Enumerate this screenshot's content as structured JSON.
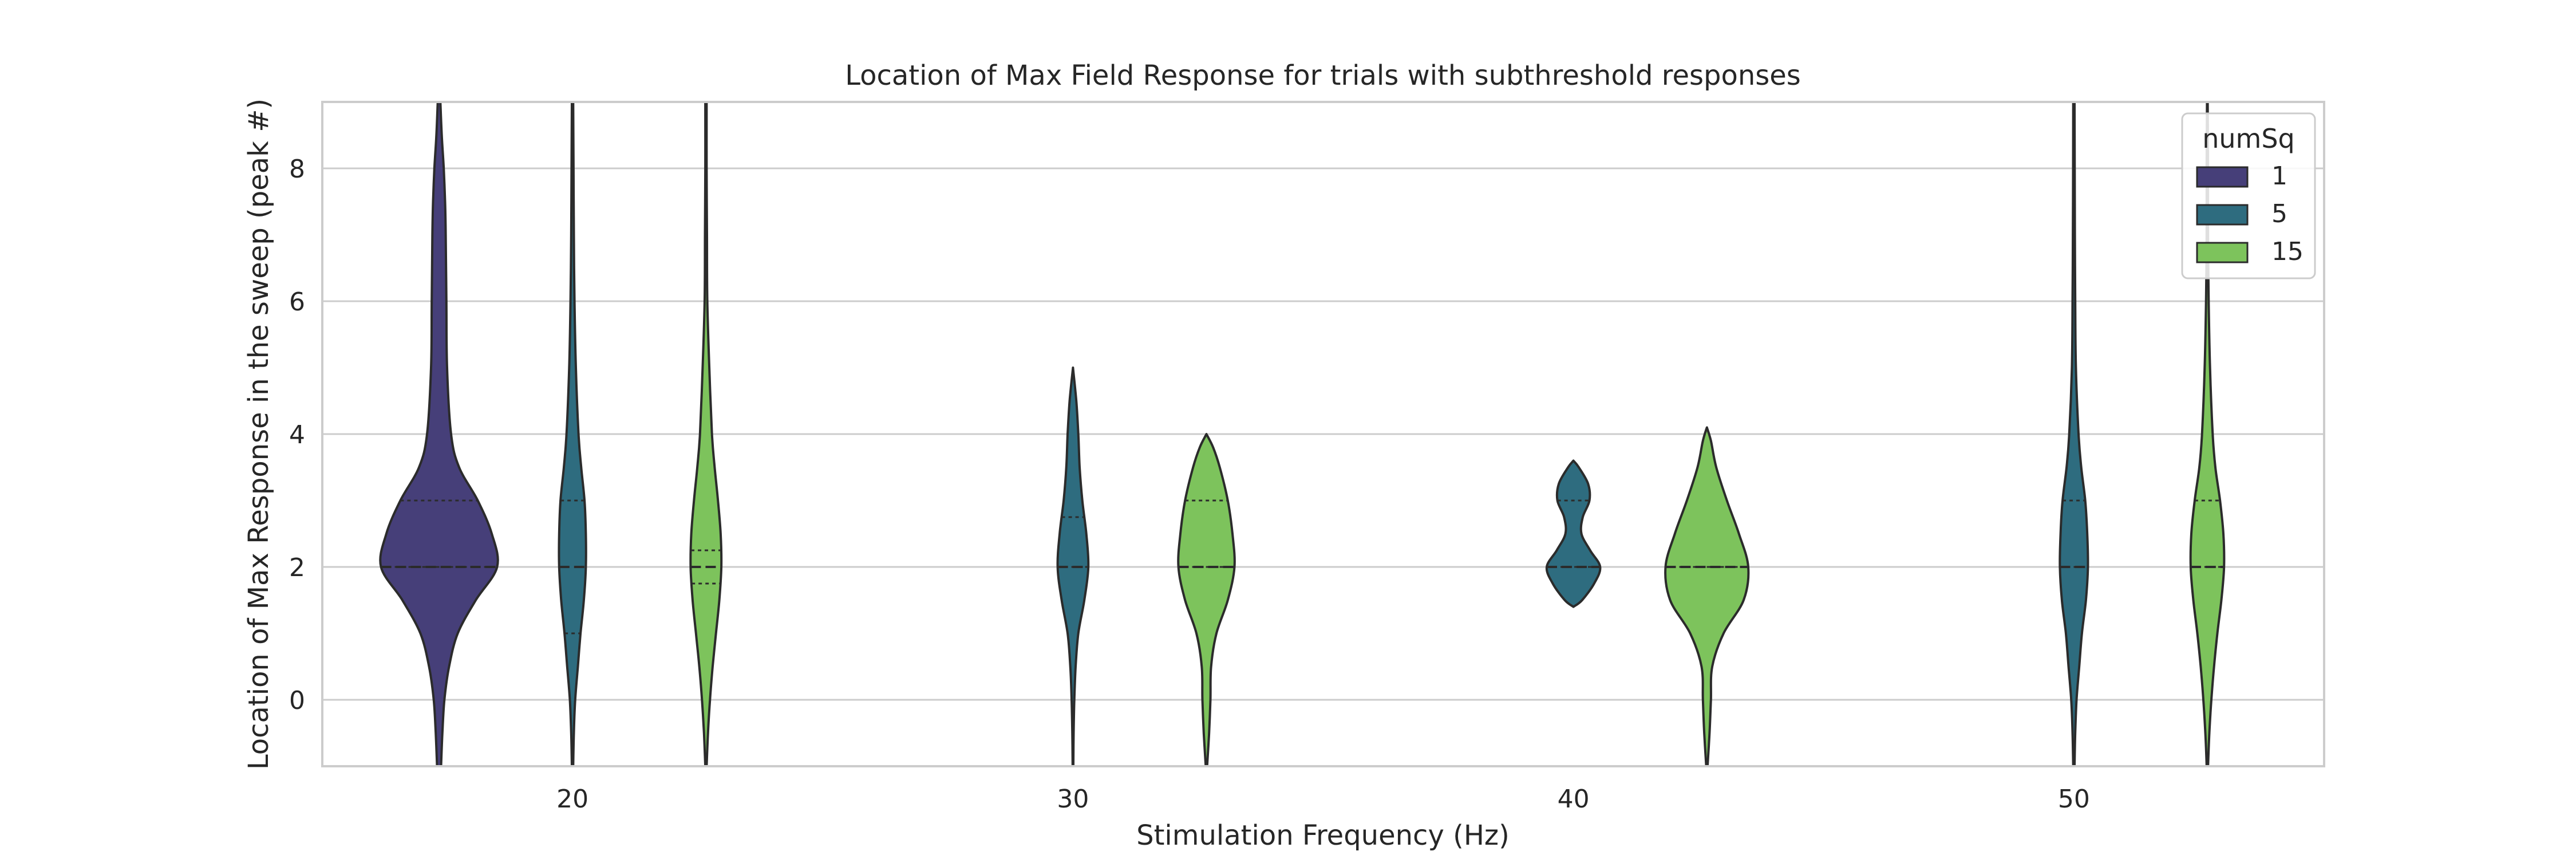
{
  "chart_data": {
    "type": "violin",
    "title": "Location of Max Field Response for trials with subthreshold responses",
    "xlabel": "Stimulation Frequency (Hz)",
    "ylabel": "Location of Max Response in the sweep (peak #)",
    "categories": [
      "20",
      "30",
      "40",
      "50"
    ],
    "ylim": [
      -1,
      9
    ],
    "yticks": [
      0,
      2,
      4,
      6,
      8
    ],
    "grid": "horizontal",
    "legend": {
      "title": "numSq",
      "position": "top-right",
      "entries": [
        {
          "label": "1",
          "color": "#463f79"
        },
        {
          "label": "5",
          "color": "#2e6c7f"
        },
        {
          "label": "15",
          "color": "#7dc35c"
        }
      ]
    },
    "series": [
      {
        "name": "1",
        "color": "#463f79",
        "violins": [
          {
            "category": "20",
            "quartiles": [
              2.0,
              2.0,
              3.0
            ],
            "profile": [
              [
                -1.0,
                0.03
              ],
              [
                -0.5,
                0.05
              ],
              [
                0.0,
                0.08
              ],
              [
                0.5,
                0.15
              ],
              [
                1.0,
                0.28
              ],
              [
                1.5,
                0.55
              ],
              [
                2.0,
                0.87
              ],
              [
                2.5,
                0.79
              ],
              [
                3.0,
                0.58
              ],
              [
                3.5,
                0.3
              ],
              [
                4.0,
                0.18
              ],
              [
                5.0,
                0.12
              ],
              [
                6.0,
                0.11
              ],
              [
                7.0,
                0.1
              ],
              [
                7.5,
                0.09
              ],
              [
                8.0,
                0.07
              ],
              [
                8.5,
                0.04
              ],
              [
                9.0,
                0.02
              ]
            ]
          }
        ]
      },
      {
        "name": "5",
        "color": "#2e6c7f",
        "violins": [
          {
            "category": "20",
            "quartiles": [
              1.0,
              2.0,
              3.0
            ],
            "profile": [
              [
                -1.0,
                0.01
              ],
              [
                -0.5,
                0.02
              ],
              [
                0.0,
                0.04
              ],
              [
                0.5,
                0.08
              ],
              [
                1.0,
                0.12
              ],
              [
                1.5,
                0.17
              ],
              [
                2.0,
                0.2
              ],
              [
                2.5,
                0.2
              ],
              [
                3.0,
                0.18
              ],
              [
                3.5,
                0.13
              ],
              [
                4.0,
                0.09
              ],
              [
                5.0,
                0.05
              ],
              [
                6.0,
                0.03
              ],
              [
                7.0,
                0.02
              ],
              [
                8.0,
                0.015
              ],
              [
                9.0,
                0.01
              ]
            ]
          },
          {
            "category": "30",
            "quartiles": [
              2.0,
              2.0,
              2.75
            ],
            "profile": [
              [
                -1.0,
                0.005
              ],
              [
                -0.5,
                0.01
              ],
              [
                0.0,
                0.02
              ],
              [
                0.5,
                0.04
              ],
              [
                1.0,
                0.08
              ],
              [
                1.5,
                0.17
              ],
              [
                2.0,
                0.23
              ],
              [
                2.5,
                0.2
              ],
              [
                3.0,
                0.14
              ],
              [
                3.5,
                0.1
              ],
              [
                4.0,
                0.08
              ],
              [
                4.5,
                0.05
              ],
              [
                5.0,
                0.0
              ]
            ]
          },
          {
            "category": "40",
            "quartiles": [
              2.0,
              2.0,
              3.0
            ],
            "profile": [
              [
                1.4,
                0.0
              ],
              [
                1.5,
                0.13
              ],
              [
                1.75,
                0.31
              ],
              [
                2.0,
                0.4
              ],
              [
                2.25,
                0.25
              ],
              [
                2.5,
                0.12
              ],
              [
                2.75,
                0.14
              ],
              [
                3.0,
                0.24
              ],
              [
                3.25,
                0.22
              ],
              [
                3.5,
                0.08
              ],
              [
                3.6,
                0.0
              ]
            ]
          },
          {
            "category": "50",
            "quartiles": [
              2.0,
              2.0,
              3.0
            ],
            "profile": [
              [
                -1.0,
                0.01
              ],
              [
                -0.5,
                0.02
              ],
              [
                0.0,
                0.04
              ],
              [
                0.5,
                0.08
              ],
              [
                1.0,
                0.12
              ],
              [
                1.5,
                0.18
              ],
              [
                2.0,
                0.21
              ],
              [
                2.5,
                0.2
              ],
              [
                3.0,
                0.17
              ],
              [
                3.5,
                0.11
              ],
              [
                4.0,
                0.07
              ],
              [
                5.0,
                0.03
              ],
              [
                6.0,
                0.02
              ],
              [
                7.0,
                0.015
              ],
              [
                8.0,
                0.012
              ],
              [
                9.0,
                0.01
              ]
            ]
          }
        ]
      },
      {
        "name": "15",
        "color": "#7dc35c",
        "violins": [
          {
            "category": "20",
            "quartiles": [
              1.75,
              2.0,
              2.25
            ],
            "profile": [
              [
                -1.0,
                0.01
              ],
              [
                -0.5,
                0.03
              ],
              [
                0.0,
                0.06
              ],
              [
                0.5,
                0.1
              ],
              [
                1.0,
                0.15
              ],
              [
                1.5,
                0.2
              ],
              [
                2.0,
                0.23
              ],
              [
                2.5,
                0.22
              ],
              [
                3.0,
                0.18
              ],
              [
                3.5,
                0.13
              ],
              [
                4.0,
                0.09
              ],
              [
                5.0,
                0.05
              ],
              [
                6.0,
                0.02
              ],
              [
                7.0,
                0.015
              ],
              [
                8.0,
                0.01
              ],
              [
                9.0,
                0.01
              ]
            ]
          },
          {
            "category": "30",
            "quartiles": [
              2.0,
              2.0,
              3.0
            ],
            "profile": [
              [
                -1.0,
                0.01
              ],
              [
                -0.5,
                0.04
              ],
              [
                0.0,
                0.06
              ],
              [
                0.5,
                0.07
              ],
              [
                1.0,
                0.15
              ],
              [
                1.5,
                0.32
              ],
              [
                2.0,
                0.42
              ],
              [
                2.5,
                0.39
              ],
              [
                3.0,
                0.32
              ],
              [
                3.5,
                0.2
              ],
              [
                3.8,
                0.1
              ],
              [
                4.0,
                0.0
              ]
            ]
          },
          {
            "category": "40",
            "quartiles": [
              2.0,
              2.0,
              2.0
            ],
            "profile": [
              [
                -1.0,
                0.01
              ],
              [
                -0.5,
                0.04
              ],
              [
                0.0,
                0.06
              ],
              [
                0.5,
                0.08
              ],
              [
                1.0,
                0.25
              ],
              [
                1.5,
                0.55
              ],
              [
                2.0,
                0.62
              ],
              [
                2.5,
                0.48
              ],
              [
                3.0,
                0.3
              ],
              [
                3.5,
                0.14
              ],
              [
                3.9,
                0.06
              ],
              [
                4.1,
                0.0
              ]
            ]
          },
          {
            "category": "50",
            "quartiles": [
              2.0,
              2.0,
              3.0
            ],
            "profile": [
              [
                -1.0,
                0.01
              ],
              [
                -0.5,
                0.03
              ],
              [
                0.0,
                0.06
              ],
              [
                0.5,
                0.1
              ],
              [
                1.0,
                0.15
              ],
              [
                1.5,
                0.21
              ],
              [
                2.0,
                0.25
              ],
              [
                2.5,
                0.24
              ],
              [
                3.0,
                0.19
              ],
              [
                3.5,
                0.12
              ],
              [
                4.0,
                0.08
              ],
              [
                5.0,
                0.04
              ],
              [
                6.0,
                0.02
              ],
              [
                7.0,
                0.01
              ],
              [
                8.0,
                0.01
              ],
              [
                9.0,
                0.005
              ]
            ]
          }
        ]
      }
    ]
  }
}
